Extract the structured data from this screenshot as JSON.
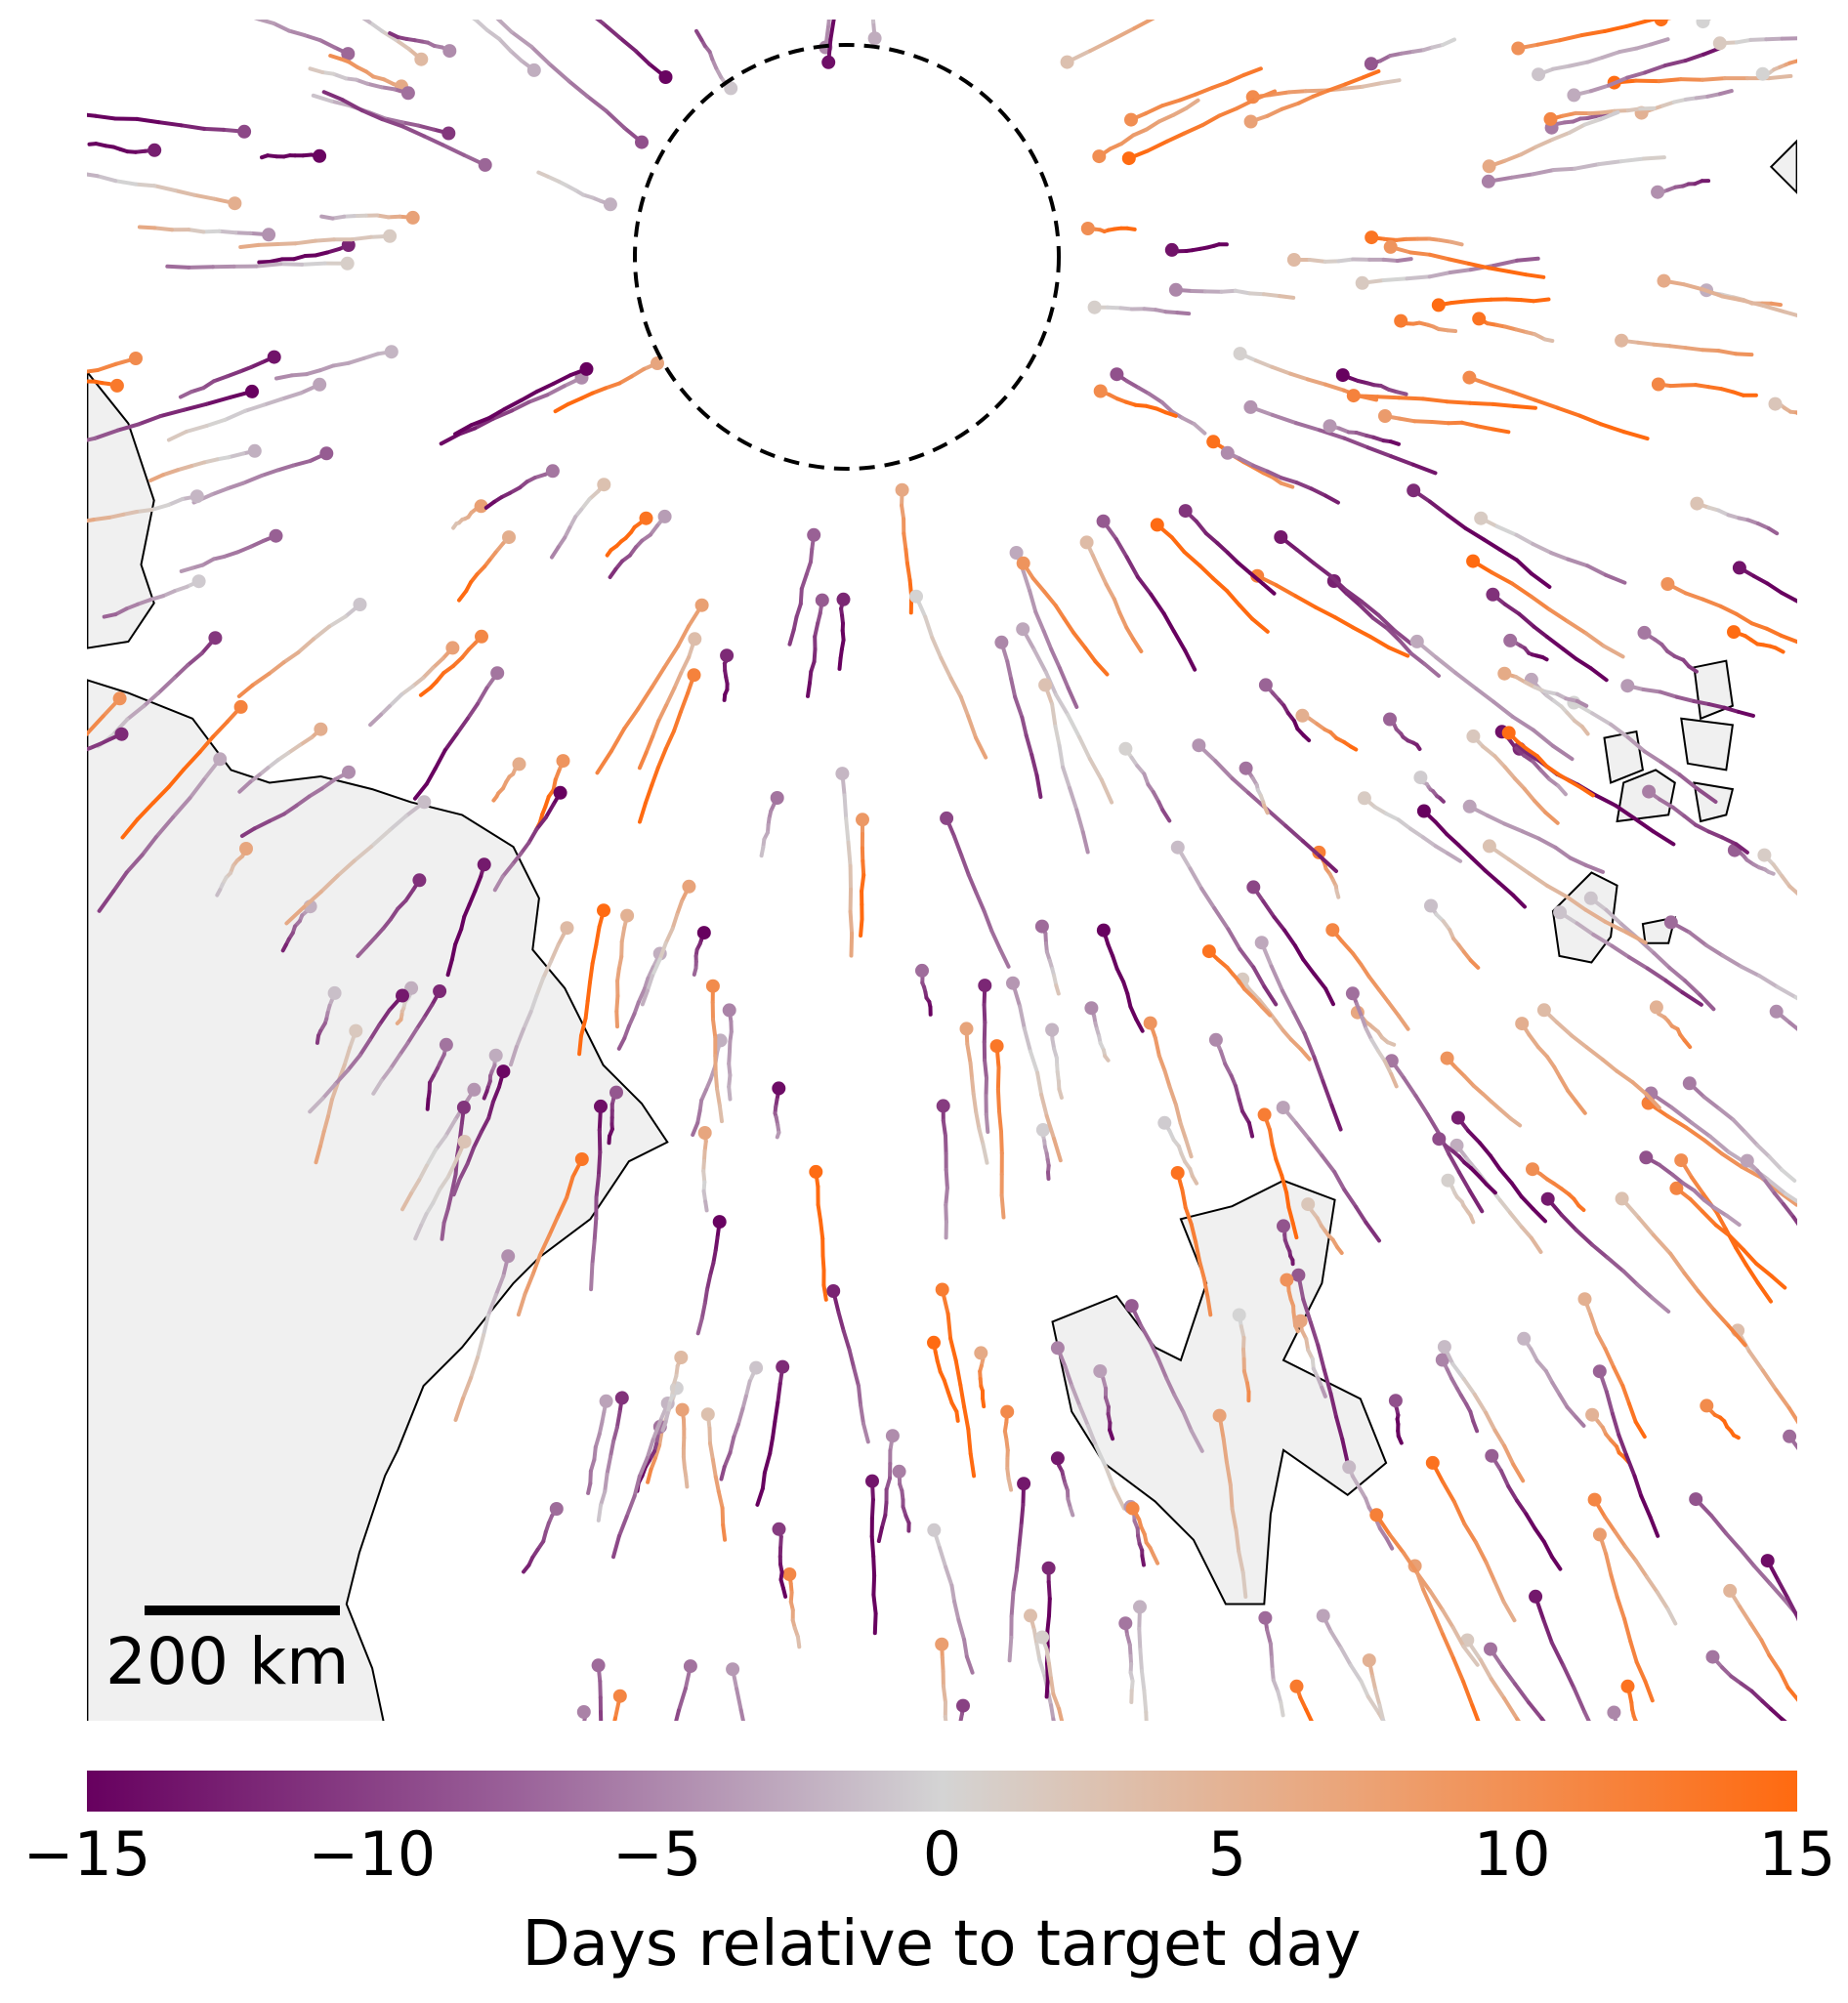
{
  "map": {
    "type": "trajectory map",
    "land_color": "#f0f0f0",
    "coast_color": "#000000",
    "target_region": "dashed circle",
    "scale_bar": {
      "label": "200 km"
    }
  },
  "colorbar": {
    "label": "Days relative to target day",
    "range": [
      -15,
      15
    ],
    "ticks": [
      "−15",
      "−10",
      "−5",
      "0",
      "5",
      "10",
      "15"
    ],
    "tick_values": [
      -15,
      -10,
      -5,
      0,
      5,
      10,
      15
    ],
    "colors": {
      "min": "#67005f",
      "mid": "#d4d4d4",
      "max": "#ff6a10"
    }
  }
}
